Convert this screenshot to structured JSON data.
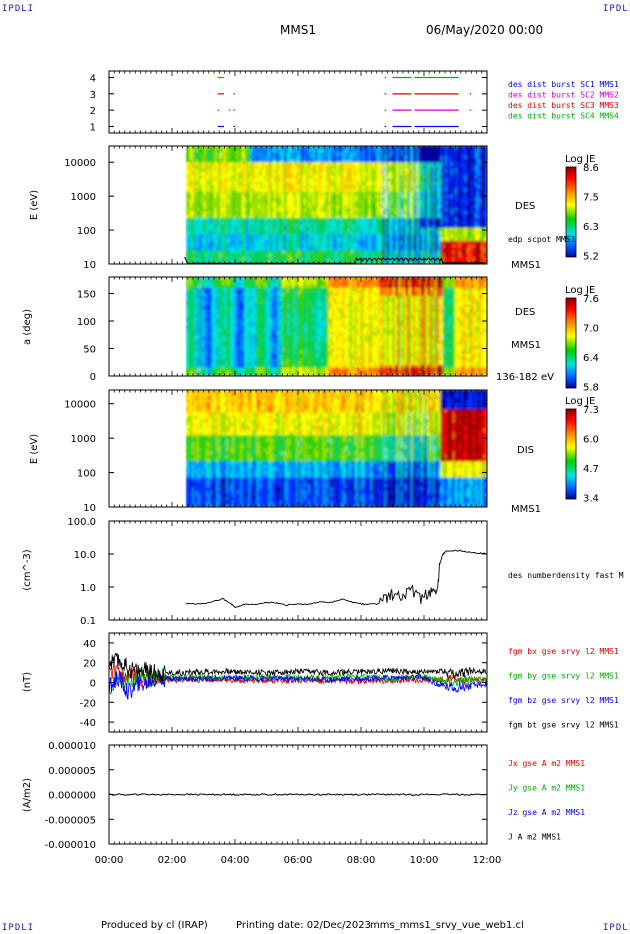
{
  "corner_mark": "IPDLI",
  "header": {
    "spacecraft": "MMS1",
    "datetime": "06/May/2020 00:00"
  },
  "footer": {
    "produced": "Produced by cl (IRAP)",
    "printing": "Printing date: 02/Dec/2023",
    "script": "mms_mms1_srvy_vue_web1.cl"
  },
  "colors": {
    "blue": "#0000ff",
    "magenta": "#d000d0",
    "red": "#e00000",
    "green": "#00b000",
    "black": "#000000"
  },
  "chart_data": [
    {
      "type": "line",
      "panel": "burst availability",
      "yticks": [
        "4",
        "3",
        "2",
        "1"
      ],
      "ylim": [
        0.6,
        4.4
      ],
      "legend": [
        {
          "name": "des dist burst SC1 MMS1",
          "color": "#0000ff"
        },
        {
          "name": "des dist burst SC2 MMS2",
          "color": "#d000d0"
        },
        {
          "name": "des dist burst SC3 MMS3",
          "color": "#e00000"
        },
        {
          "name": "des dist burst SC4 MMS4",
          "color": "#00b000"
        }
      ],
      "series": [
        {
          "name": "des dist burst SC4 MMS4",
          "level": 4,
          "intervals": [
            [
              3.45,
              3.65
            ],
            [
              8.75,
              8.8
            ],
            [
              9.0,
              9.6
            ],
            [
              9.7,
              11.1
            ]
          ]
        },
        {
          "name": "des dist burst SC3 MMS3",
          "level": 3,
          "intervals": [
            [
              3.45,
              3.65
            ],
            [
              3.95,
              4.0
            ],
            [
              8.75,
              8.8
            ],
            [
              9.0,
              9.6
            ],
            [
              9.7,
              11.1
            ],
            [
              11.45,
              11.5
            ]
          ]
        },
        {
          "name": "des dist burst SC2 MMS2",
          "level": 2,
          "intervals": [
            [
              3.45,
              3.5
            ],
            [
              3.8,
              3.85
            ],
            [
              3.95,
              4.0
            ],
            [
              8.75,
              8.8
            ],
            [
              9.0,
              9.6
            ],
            [
              9.7,
              11.1
            ],
            [
              11.45,
              11.5
            ]
          ]
        },
        {
          "name": "des dist burst SC1 MMS1",
          "level": 1,
          "intervals": [
            [
              3.45,
              3.65
            ],
            [
              3.95,
              4.0
            ],
            [
              8.75,
              8.8
            ],
            [
              9.0,
              9.6
            ],
            [
              9.7,
              11.1
            ]
          ]
        }
      ]
    },
    {
      "type": "heatmap",
      "panel": "DES energy spectrogram",
      "ylabel": "E (eV)",
      "yticks": [
        "10000",
        "1000",
        "100",
        "10"
      ],
      "yscale": "log",
      "ylim": [
        10,
        30000
      ],
      "instrument": "DES",
      "spacecraft": "MMS1",
      "colorbar": {
        "title": "Log JE",
        "ticks": [
          "8.6",
          "7.5",
          "6.3",
          "5.2"
        ],
        "range": [
          5.2,
          8.6
        ]
      },
      "overlay": {
        "name": "edp scpot MMS1"
      }
    },
    {
      "type": "heatmap",
      "panel": "DES pitch angle",
      "ylabel": "a (deg)",
      "yticks": [
        "150",
        "100",
        "50",
        "0"
      ],
      "ylim": [
        0,
        180
      ],
      "instrument": "DES",
      "spacecraft": "MMS1",
      "energy_band": "136-182 eV",
      "colorbar": {
        "title": "Log JE",
        "ticks": [
          "7.6",
          "7.0",
          "6.4",
          "5.8"
        ],
        "range": [
          5.8,
          7.6
        ]
      }
    },
    {
      "type": "heatmap",
      "panel": "DIS energy spectrogram",
      "ylabel": "E (eV)",
      "yticks": [
        "10000",
        "1000",
        "100",
        "10"
      ],
      "yscale": "log",
      "ylim": [
        10,
        25000
      ],
      "instrument": "DIS",
      "spacecraft": "MMS1",
      "colorbar": {
        "title": "Log JE",
        "ticks": [
          "7.3",
          "6.0",
          "4.7",
          "3.4"
        ],
        "range": [
          3.4,
          7.3
        ]
      }
    },
    {
      "type": "line",
      "panel": "density",
      "ylabel": "(cm^-3)",
      "yticks": [
        "100.0",
        "10.0",
        "1.0",
        "0.1"
      ],
      "yscale": "log",
      "ylim": [
        0.1,
        100
      ],
      "legend": [
        {
          "name": "des numberdensity fast M",
          "color": "#000000"
        }
      ],
      "series": [
        {
          "name": "des numberdensity fast M",
          "x": [
            2.45,
            2.8,
            3.2,
            3.6,
            3.9,
            4.0,
            4.3,
            4.7,
            5.0,
            5.3,
            5.6,
            5.9,
            6.3,
            6.7,
            7.0,
            7.4,
            7.8,
            8.1,
            8.5,
            8.8,
            9.0,
            9.3,
            9.6,
            9.9,
            10.2,
            10.4,
            10.5,
            10.6,
            10.7,
            11.0,
            11.3,
            11.6,
            12.0
          ],
          "y": [
            0.32,
            0.3,
            0.33,
            0.45,
            0.3,
            0.24,
            0.3,
            0.3,
            0.34,
            0.33,
            0.28,
            0.31,
            0.29,
            0.36,
            0.33,
            0.42,
            0.33,
            0.3,
            0.3,
            0.45,
            0.6,
            0.5,
            0.8,
            0.45,
            0.7,
            0.5,
            5,
            10,
            12,
            13,
            12,
            11,
            10
          ]
        }
      ]
    },
    {
      "type": "line",
      "panel": "magnetic field",
      "ylabel": "(nT)",
      "yticks": [
        "40",
        "20",
        "0",
        "-20",
        "-40"
      ],
      "ylim": [
        -50,
        50
      ],
      "legend": [
        {
          "name": "fgm bx gse srvy l2 MMS1",
          "color": "#e00000"
        },
        {
          "name": "fgm by gse srvy l2 MMS1",
          "color": "#00b000"
        },
        {
          "name": "fgm bz gse srvy l2 MMS1",
          "color": "#0000ff"
        },
        {
          "name": "fgm bt gse srvy l2 MMS1",
          "color": "#000000"
        }
      ],
      "x": [
        0,
        0.3,
        0.6,
        0.9,
        1.2,
        1.5,
        2,
        2.5,
        3,
        4,
        5,
        6,
        7,
        8,
        9,
        10,
        10.5,
        11,
        11.5,
        12
      ],
      "series": [
        {
          "name": "fgm bx gse srvy l2 MMS1",
          "values": [
            15,
            8,
            5,
            6,
            2,
            4,
            3,
            3,
            3,
            2,
            2,
            2,
            2,
            1,
            2,
            3,
            2,
            3,
            2,
            3
          ]
        },
        {
          "name": "fgm by gse srvy l2 MMS1",
          "values": [
            -5,
            5,
            0,
            5,
            3,
            6,
            5,
            5,
            5,
            5,
            5,
            5,
            5,
            6,
            4,
            6,
            2,
            0,
            4,
            2
          ]
        },
        {
          "name": "fgm bz gse srvy l2 MMS1",
          "values": [
            -5,
            5,
            -10,
            -3,
            0,
            4,
            4,
            4,
            4,
            4,
            4,
            4,
            3,
            4,
            5,
            5,
            -3,
            -5,
            -3,
            -2
          ]
        },
        {
          "name": "fgm bt gse srvy l2 MMS1",
          "values": [
            20,
            22,
            15,
            12,
            12,
            10,
            10,
            10,
            11,
            11,
            10,
            11,
            10,
            11,
            12,
            10,
            12,
            8,
            12,
            11
          ]
        }
      ]
    },
    {
      "type": "line",
      "panel": "current density",
      "ylabel": "(A/m2)",
      "yticks": [
        "0.000010",
        "0.000005",
        "0.000000",
        "-0.000005",
        "-0.000010"
      ],
      "ylim": [
        -1e-05,
        1e-05
      ],
      "legend": [
        {
          "name": "Jx gse A m2 MMS1",
          "color": "#e00000"
        },
        {
          "name": "Jy gse A m2 MMS1",
          "color": "#00b000"
        },
        {
          "name": "Jz gse A m2 MMS1",
          "color": "#0000ff"
        },
        {
          "name": "J A m2 MMS1",
          "color": "#000000"
        }
      ],
      "series": [
        {
          "name": "J A m2 MMS1",
          "x": [
            0,
            12
          ],
          "y": [
            0,
            0
          ]
        }
      ]
    }
  ],
  "x_axis": {
    "ticks": [
      "00:00",
      "02:00",
      "04:00",
      "06:00",
      "08:00",
      "10:00",
      "12:00"
    ],
    "range_hours": [
      0,
      12
    ]
  }
}
